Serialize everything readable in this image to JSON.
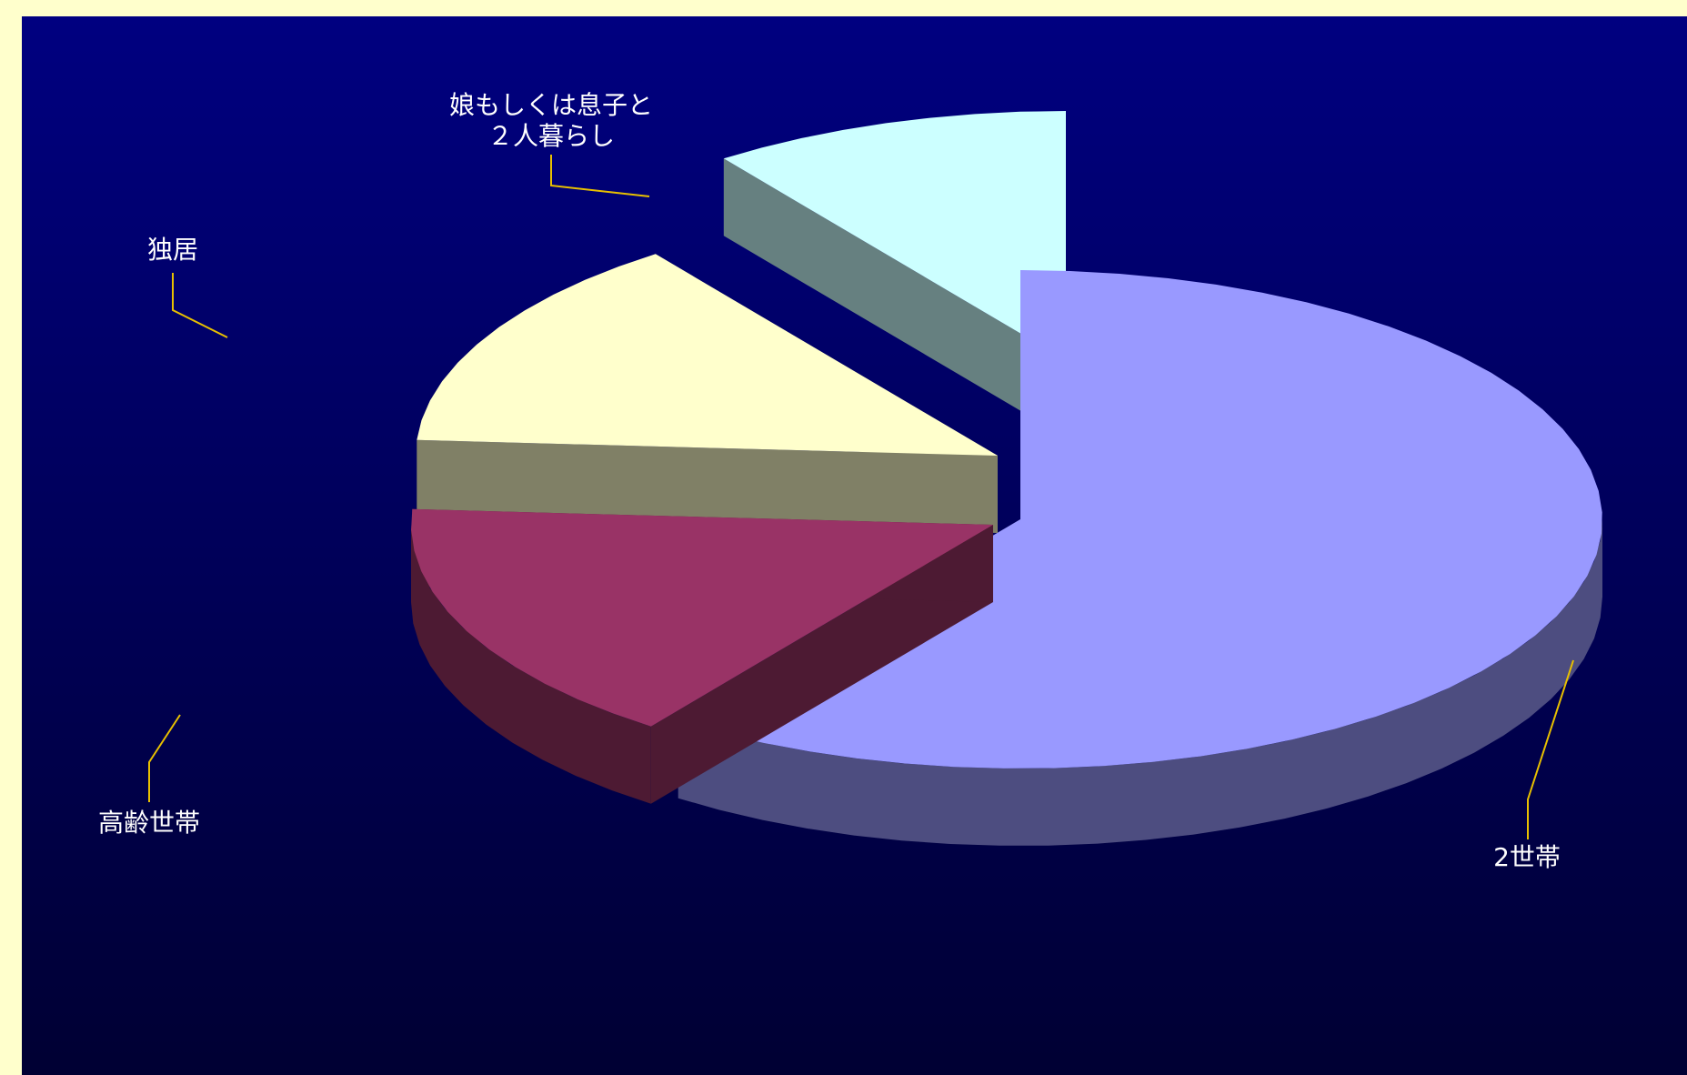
{
  "colors": {
    "frame": "#ffffcc",
    "background_top": "#000080",
    "background_bottom": "#000033",
    "leader_line": "#e8c000",
    "label_text": "#ffffff"
  },
  "chart_data": {
    "type": "pie",
    "style": "3d-exploded",
    "slices": [
      {
        "label": "2世帯",
        "value": 60,
        "color": "#9999ff",
        "side_color": "#4d4d80"
      },
      {
        "label": "高齢世帯",
        "value": 16,
        "color": "#993366",
        "side_color": "#4d1a33"
      },
      {
        "label": "独居",
        "value": 14,
        "color": "#ffffcc",
        "side_color": "#808066"
      },
      {
        "label": [
          "娘もしくは息子と",
          "２人暮らし"
        ],
        "value": 10,
        "color": "#ccffff",
        "side_color": "#668080"
      }
    ]
  }
}
